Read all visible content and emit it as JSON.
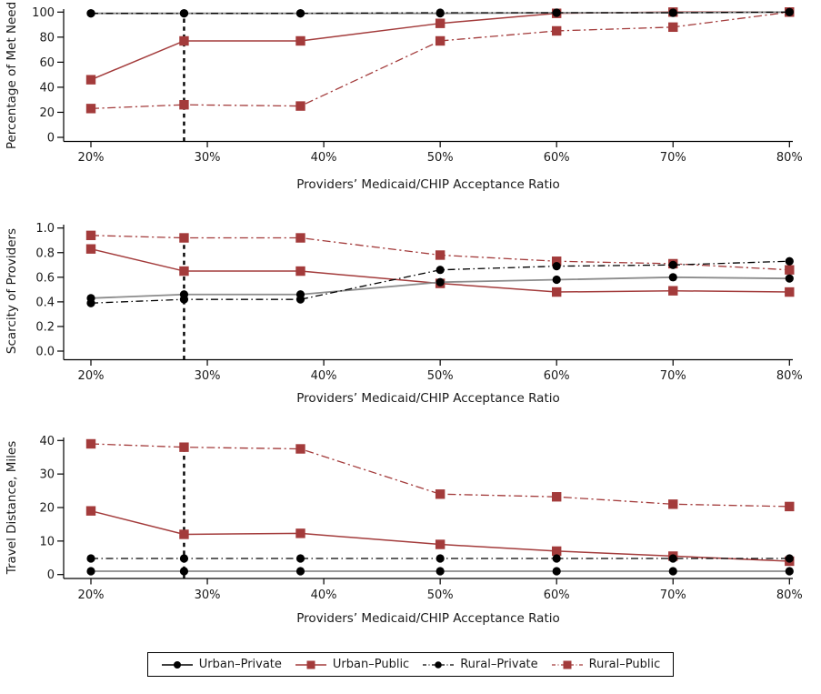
{
  "colors": {
    "accent_red": "#A33B3B",
    "marker_black": "#000000",
    "urban_private_line_gray": "#8C8C8C",
    "reference_line_black": "#000000",
    "text": "#1a1a1a"
  },
  "x_axis": {
    "title": "Providers’ Medicaid/CHIP Acceptance Ratio",
    "tick_values": [
      20,
      30,
      40,
      50,
      60,
      70,
      80
    ],
    "tick_labels": [
      "20%",
      "30%",
      "40%",
      "50%",
      "60%",
      "70%",
      "80%"
    ],
    "range": [
      20,
      80
    ]
  },
  "series_meta": [
    {
      "key": "urban_private",
      "label": "Urban–Private",
      "marker": "circle",
      "marker_color": "#000000",
      "line_color": "#8C8C8C",
      "line_style": "solid"
    },
    {
      "key": "urban_public",
      "label": "Urban–Public",
      "marker": "square",
      "marker_color": "#A33B3B",
      "line_color": "#A33B3B",
      "line_style": "solid"
    },
    {
      "key": "rural_private",
      "label": "Rural–Private",
      "marker": "circle",
      "marker_color": "#000000",
      "line_color": "#000000",
      "line_style": "dashdot"
    },
    {
      "key": "rural_public",
      "label": "Rural–Public",
      "marker": "square",
      "marker_color": "#A33B3B",
      "line_color": "#A33B3B",
      "line_style": "dashdot"
    }
  ],
  "reference_line": {
    "x": 28,
    "style": "dashed",
    "color": "#000000"
  },
  "chart_data": [
    {
      "type": "line",
      "title": "",
      "ylabel": "Percentage of Met Need",
      "xlabel": "Providers’ Medicaid/CHIP Acceptance Ratio",
      "ylim": [
        0,
        100
      ],
      "yticks": [
        0,
        20,
        40,
        60,
        80,
        100
      ],
      "ytick_labels": [
        "0",
        "20",
        "40",
        "60",
        "80",
        "100"
      ],
      "x": [
        20,
        28,
        38,
        50,
        60,
        70,
        80
      ],
      "series": [
        {
          "name": "Urban–Private",
          "values": [
            99,
            99,
            99,
            99,
            99.5,
            99.5,
            100
          ]
        },
        {
          "name": "Urban–Public",
          "values": [
            46,
            77,
            77,
            91,
            99,
            100,
            100
          ]
        },
        {
          "name": "Rural–Private",
          "values": [
            99,
            99,
            99,
            99.5,
            99.5,
            99.5,
            100
          ]
        },
        {
          "name": "Rural–Public",
          "values": [
            23,
            26,
            25,
            77,
            85,
            88,
            100
          ]
        }
      ]
    },
    {
      "type": "line",
      "title": "",
      "ylabel": "Scarcity of Providers",
      "xlabel": "Providers’ Medicaid/CHIP Acceptance Ratio",
      "ylim": [
        0,
        1
      ],
      "yticks": [
        0,
        0.2,
        0.4,
        0.6,
        0.8,
        1.0
      ],
      "ytick_labels": [
        "0.0",
        "0.2",
        "0.4",
        "0.6",
        "0.8",
        "1.0"
      ],
      "x": [
        20,
        28,
        38,
        50,
        60,
        70,
        80
      ],
      "series": [
        {
          "name": "Urban–Private",
          "values": [
            0.43,
            0.46,
            0.46,
            0.56,
            0.58,
            0.6,
            0.59
          ]
        },
        {
          "name": "Urban–Public",
          "values": [
            0.83,
            0.65,
            0.65,
            0.55,
            0.48,
            0.49,
            0.48
          ]
        },
        {
          "name": "Rural–Private",
          "values": [
            0.39,
            0.42,
            0.42,
            0.66,
            0.69,
            0.7,
            0.73
          ]
        },
        {
          "name": "Rural–Public",
          "values": [
            0.94,
            0.92,
            0.92,
            0.78,
            0.73,
            0.71,
            0.66
          ]
        }
      ]
    },
    {
      "type": "line",
      "title": "",
      "ylabel": "Travel Distance, Miles",
      "xlabel": "Providers’ Medicaid/CHIP Acceptance Ratio",
      "ylim": [
        0,
        40
      ],
      "yticks": [
        0,
        10,
        20,
        30,
        40
      ],
      "ytick_labels": [
        "0",
        "10",
        "20",
        "30",
        "40"
      ],
      "x": [
        20,
        28,
        38,
        50,
        60,
        70,
        80
      ],
      "series": [
        {
          "name": "Urban–Private",
          "values": [
            1,
            1,
            1,
            1,
            1,
            1,
            1
          ]
        },
        {
          "name": "Urban–Public",
          "values": [
            19,
            12,
            12.3,
            9,
            7,
            5.5,
            4
          ]
        },
        {
          "name": "Rural–Private",
          "values": [
            4.8,
            4.8,
            4.8,
            4.8,
            4.8,
            4.8,
            4.8
          ]
        },
        {
          "name": "Rural–Public",
          "values": [
            39,
            38,
            37.5,
            24,
            23.2,
            21,
            20.3
          ]
        }
      ]
    }
  ]
}
